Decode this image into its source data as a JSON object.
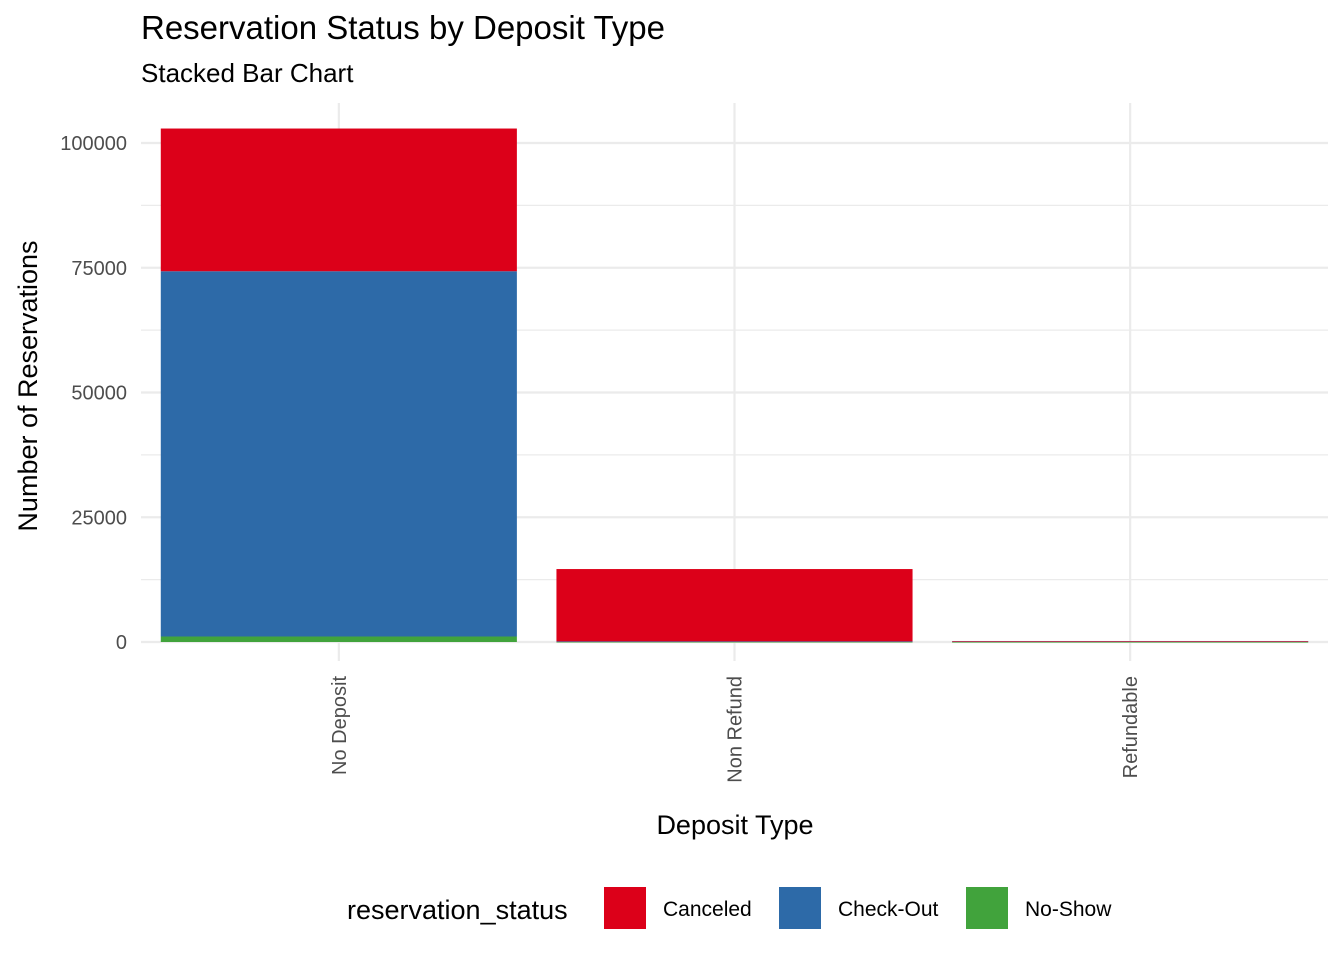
{
  "chart_data": {
    "type": "bar",
    "stacked": true,
    "title": "Reservation Status by Deposit Type",
    "subtitle": "Stacked Bar Chart",
    "xlabel": "Deposit Type",
    "ylabel": "Number of Reservations",
    "categories": [
      "No Deposit",
      "Non Refund",
      "Refundable"
    ],
    "series": [
      {
        "name": "Canceled",
        "color": "#dc0019",
        "values": [
          28600,
          14500,
          40
        ]
      },
      {
        "name": "Check-Out",
        "color": "#2d6aa8",
        "values": [
          73200,
          100,
          120
        ]
      },
      {
        "name": "No-Show",
        "color": "#41a33c",
        "values": [
          1100,
          20,
          5
        ]
      }
    ],
    "ylim": [
      0,
      107000
    ],
    "yticks": [
      0,
      25000,
      50000,
      75000,
      100000
    ],
    "ytick_labels": [
      "0",
      "25000",
      "50000",
      "75000",
      "100000"
    ],
    "grid": true,
    "legend": {
      "title": "reservation_status",
      "position": "bottom"
    }
  }
}
